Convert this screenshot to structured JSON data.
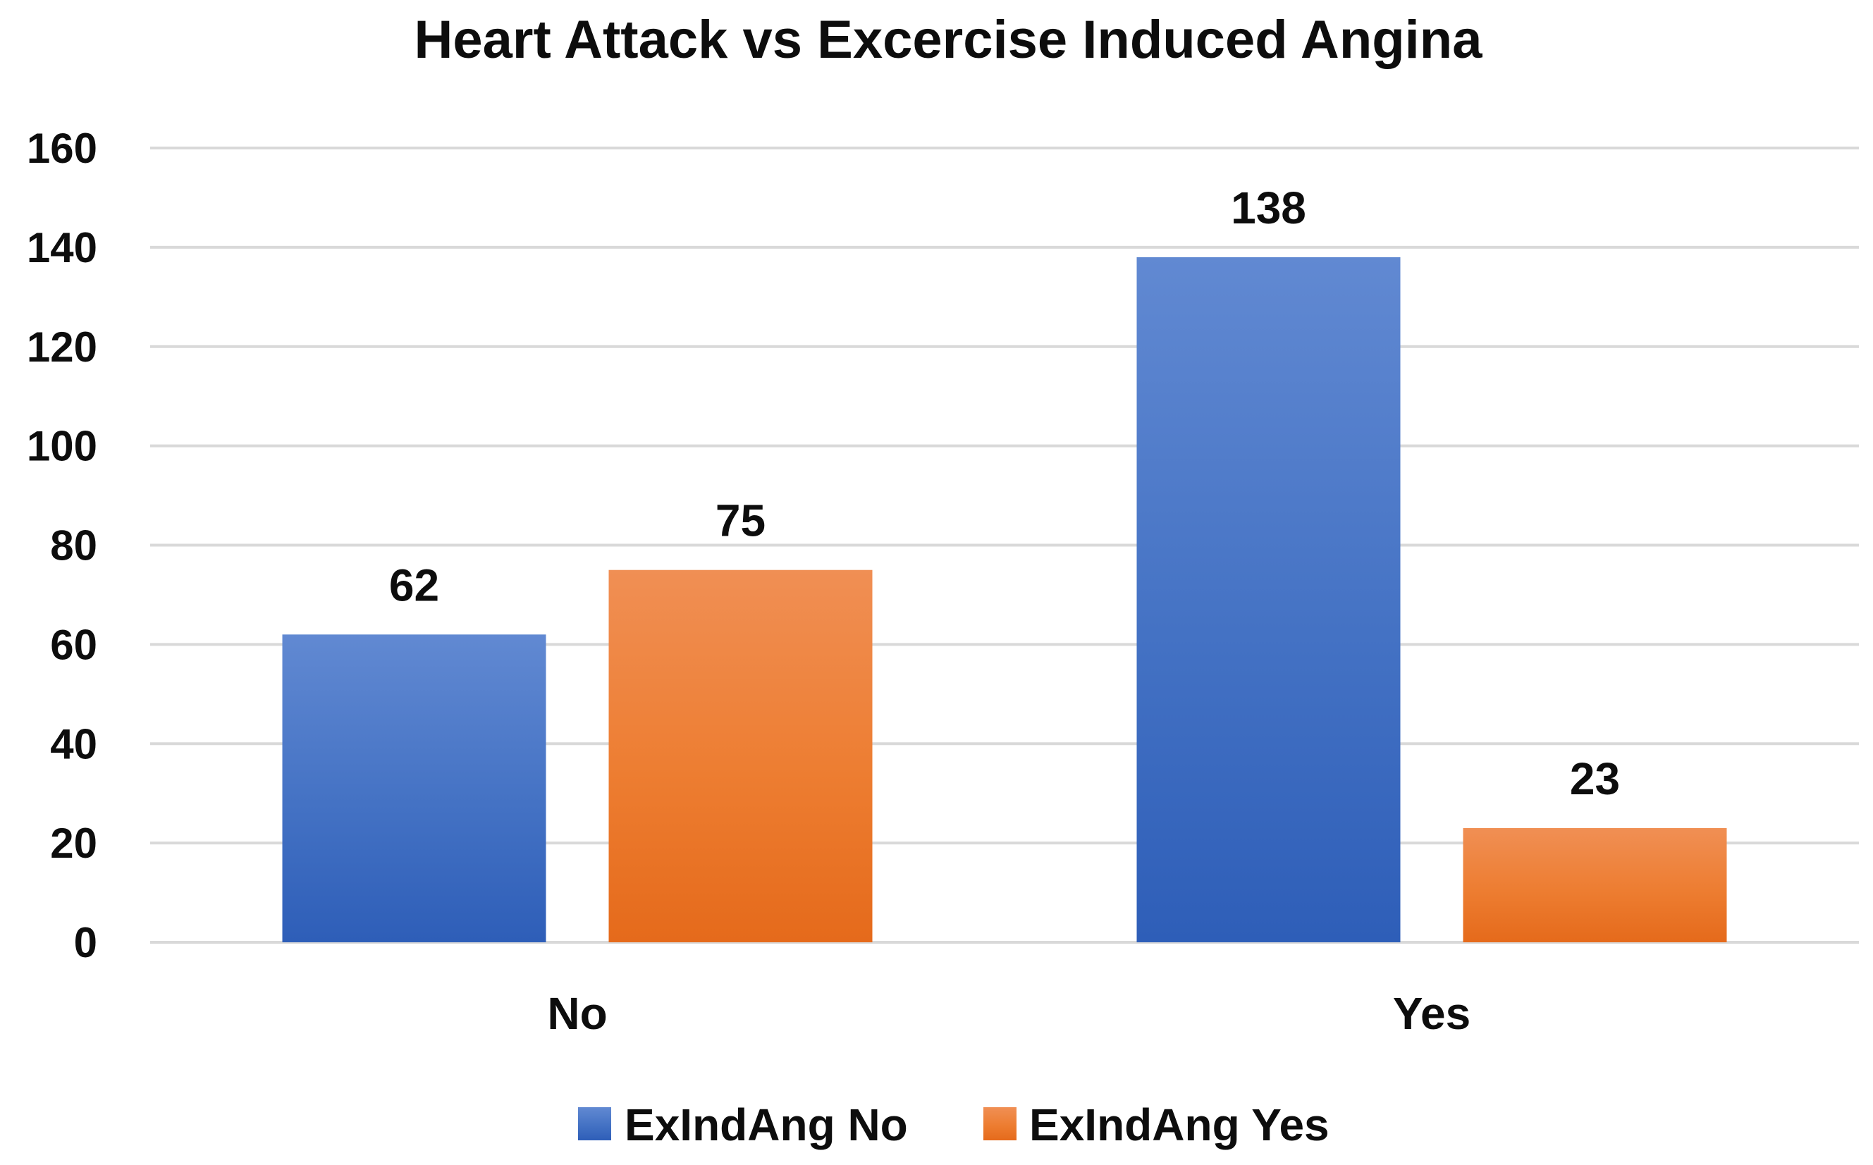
{
  "chart_data": {
    "type": "bar",
    "title": "Heart Attack vs Excercise Induced Angina",
    "xlabel": "",
    "ylabel": "",
    "categories": [
      "No",
      "Yes"
    ],
    "series": [
      {
        "name": "ExIndAng No",
        "values": [
          62,
          138
        ],
        "color": "#4472C4",
        "color_light": "#6189D2",
        "color_dark": "#2E5EB8"
      },
      {
        "name": "ExIndAng Yes",
        "values": [
          75,
          23
        ],
        "color": "#ED7D31",
        "color_light": "#F08F54",
        "color_dark": "#E56A1B"
      }
    ],
    "ylim": [
      0,
      160
    ],
    "yticks": [
      0,
      20,
      40,
      60,
      80,
      100,
      120,
      140,
      160
    ],
    "grid": true,
    "legend": "bottom-center",
    "data_labels": true
  }
}
